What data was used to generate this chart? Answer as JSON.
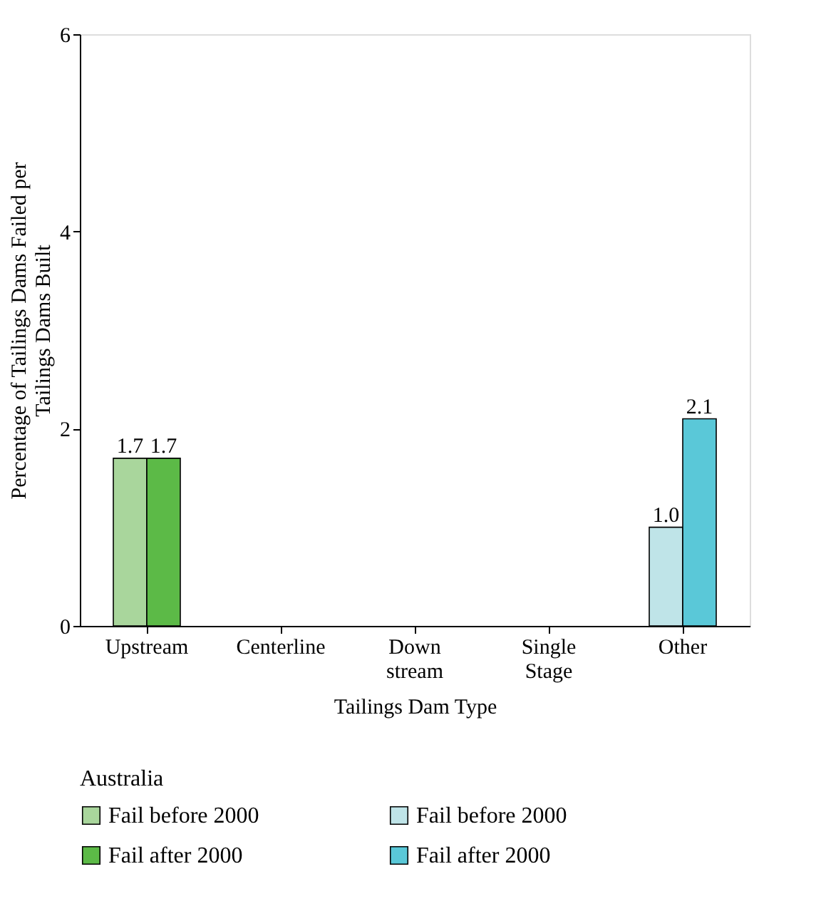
{
  "chart_data": {
    "type": "bar",
    "xlabel": "Tailings Dam Type",
    "ylabel": "Percentage of Tailings Dams Failed per Tailings Dams Built",
    "legend_title": "Australia",
    "categories": [
      "Upstream",
      "Centerline",
      "Down stream",
      "Single Stage",
      "Other"
    ],
    "series": [
      {
        "name": "Fail before 2000",
        "color": "#a9d69c",
        "values": [
          1.7,
          null,
          null,
          null,
          null
        ],
        "value_labels": [
          "1.7",
          null,
          null,
          null,
          null
        ]
      },
      {
        "name": "Fail after 2000",
        "color": "#5cba47",
        "values": [
          1.7,
          null,
          null,
          null,
          null
        ],
        "value_labels": [
          "1.7",
          null,
          null,
          null,
          null
        ]
      },
      {
        "name": "Fail before 2000",
        "color": "#bfe4e8",
        "values": [
          null,
          null,
          null,
          null,
          1.0
        ],
        "value_labels": [
          null,
          null,
          null,
          null,
          "1.0"
        ]
      },
      {
        "name": "Fail after 2000",
        "color": "#5ac8d8",
        "values": [
          null,
          null,
          null,
          null,
          2.1
        ],
        "value_labels": [
          null,
          null,
          null,
          null,
          "2.1"
        ]
      }
    ],
    "ylim": [
      0,
      6
    ],
    "yticks": [
      0,
      2,
      4,
      6
    ],
    "legend": "bottom",
    "grid": false
  }
}
